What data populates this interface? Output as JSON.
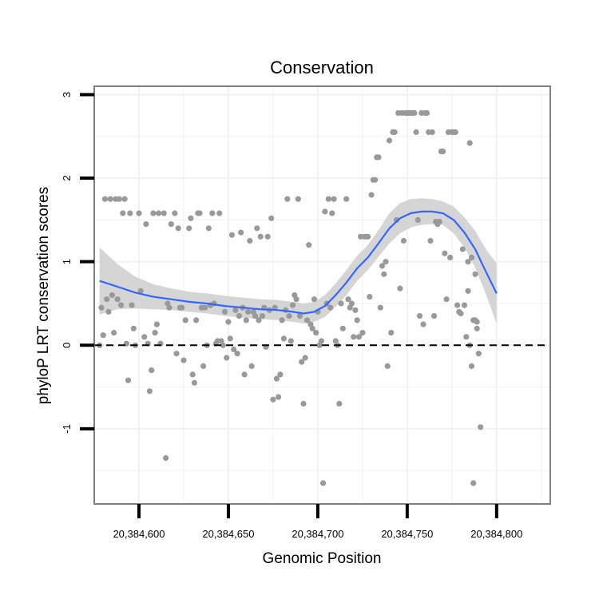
{
  "chart_data": {
    "type": "scatter",
    "title": "Conservation",
    "xlabel": "Genomic Position",
    "ylabel": "phyloP LRT conservation scores",
    "xlim": [
      20384575,
      20384830
    ],
    "ylim": [
      -1.9,
      3.1
    ],
    "x_ticks": [
      20384600,
      20384650,
      20384700,
      20384750,
      20384800
    ],
    "x_tick_labels": [
      "20,384,600",
      "20,384,650",
      "20,384,700",
      "20,384,750",
      "20,384,800"
    ],
    "y_ticks": [
      -1,
      0,
      1,
      2,
      3
    ],
    "y_tick_labels": [
      "-1",
      "0",
      "1",
      "2",
      "3"
    ],
    "reference_line": {
      "y": 0,
      "style": "dashed"
    },
    "grid": true,
    "colors": {
      "points": "#999999",
      "smooth": "#3366ff",
      "ribbon": "#d3d3d3",
      "frame": "#7f7f7f",
      "grid": "#f2f2f2"
    },
    "points": [
      [
        20384578,
        0.0
      ],
      [
        20384579,
        0.45
      ],
      [
        20384580,
        0.12
      ],
      [
        20384581,
        1.75
      ],
      [
        20384582,
        0.55
      ],
      [
        20384583,
        0.4
      ],
      [
        20384584,
        1.75
      ],
      [
        20384585,
        0.6
      ],
      [
        20384586,
        0.15
      ],
      [
        20384587,
        1.75
      ],
      [
        20384588,
        0.55
      ],
      [
        20384589,
        1.75
      ],
      [
        20384590,
        0.48
      ],
      [
        20384591,
        1.58
      ],
      [
        20384592,
        1.75
      ],
      [
        20384593,
        0.02
      ],
      [
        20384594,
        -0.42
      ],
      [
        20384595,
        1.58
      ],
      [
        20384596,
        0.48
      ],
      [
        20384597,
        0.2
      ],
      [
        20384598,
        0.0
      ],
      [
        20384600,
        1.58
      ],
      [
        20384601,
        0.65
      ],
      [
        20384603,
        0.1
      ],
      [
        20384604,
        1.45
      ],
      [
        20384605,
        0.02
      ],
      [
        20384606,
        -0.55
      ],
      [
        20384607,
        -0.3
      ],
      [
        20384608,
        1.58
      ],
      [
        20384609,
        0.15
      ],
      [
        20384610,
        0.25
      ],
      [
        20384611,
        1.58
      ],
      [
        20384612,
        0.02
      ],
      [
        20384614,
        1.58
      ],
      [
        20384615,
        -1.35
      ],
      [
        20384616,
        0.5
      ],
      [
        20384617,
        0.45
      ],
      [
        20384618,
        1.45
      ],
      [
        20384620,
        1.58
      ],
      [
        20384621,
        -0.1
      ],
      [
        20384622,
        1.4
      ],
      [
        20384623,
        0.45
      ],
      [
        20384624,
        0.45
      ],
      [
        20384625,
        -0.18
      ],
      [
        20384626,
        0.3
      ],
      [
        20384628,
        1.4
      ],
      [
        20384629,
        1.52
      ],
      [
        20384630,
        -0.35
      ],
      [
        20384631,
        -0.45
      ],
      [
        20384632,
        0.3
      ],
      [
        20384633,
        1.58
      ],
      [
        20384634,
        1.58
      ],
      [
        20384635,
        0.45
      ],
      [
        20384636,
        -0.25
      ],
      [
        20384637,
        0.45
      ],
      [
        20384638,
        0.0
      ],
      [
        20384639,
        1.4
      ],
      [
        20384640,
        0.48
      ],
      [
        20384641,
        1.58
      ],
      [
        20384642,
        0.5
      ],
      [
        20384643,
        0.02
      ],
      [
        20384644,
        0.05
      ],
      [
        20384645,
        1.58
      ],
      [
        20384646,
        0.05
      ],
      [
        20384647,
        0.0
      ],
      [
        20384648,
        0.4
      ],
      [
        20384649,
        -0.15
      ],
      [
        20384650,
        0.28
      ],
      [
        20384651,
        0.08
      ],
      [
        20384652,
        1.32
      ],
      [
        20384653,
        -0.05
      ],
      [
        20384654,
        0.42
      ],
      [
        20384655,
        -0.1
      ],
      [
        20384656,
        0.35
      ],
      [
        20384657,
        1.35
      ],
      [
        20384658,
        0.45
      ],
      [
        20384659,
        -0.35
      ],
      [
        20384660,
        0.3
      ],
      [
        20384661,
        0.4
      ],
      [
        20384662,
        1.25
      ],
      [
        20384663,
        -0.25
      ],
      [
        20384664,
        0.4
      ],
      [
        20384665,
        0.35
      ],
      [
        20384666,
        1.4
      ],
      [
        20384667,
        0.3
      ],
      [
        20384668,
        1.3
      ],
      [
        20384669,
        0.35
      ],
      [
        20384670,
        0.45
      ],
      [
        20384671,
        -0.02
      ],
      [
        20384672,
        1.3
      ],
      [
        20384673,
        0.42
      ],
      [
        20384674,
        1.52
      ],
      [
        20384675,
        -0.65
      ],
      [
        20384676,
        0.45
      ],
      [
        20384677,
        -0.4
      ],
      [
        20384678,
        -0.62
      ],
      [
        20384679,
        -0.35
      ],
      [
        20384680,
        0.3
      ],
      [
        20384681,
        0.08
      ],
      [
        20384682,
        0.42
      ],
      [
        20384683,
        1.75
      ],
      [
        20384684,
        0.35
      ],
      [
        20384685,
        0.05
      ],
      [
        20384686,
        0.48
      ],
      [
        20384687,
        0.6
      ],
      [
        20384688,
        0.55
      ],
      [
        20384689,
        1.75
      ],
      [
        20384690,
        0.35
      ],
      [
        20384691,
        -0.2
      ],
      [
        20384692,
        -0.7
      ],
      [
        20384693,
        -0.15
      ],
      [
        20384694,
        0.3
      ],
      [
        20384695,
        1.2
      ],
      [
        20384696,
        0.25
      ],
      [
        20384697,
        0.2
      ],
      [
        20384698,
        0.55
      ],
      [
        20384699,
        0.15
      ],
      [
        20384700,
        0.4
      ],
      [
        20384701,
        0.0
      ],
      [
        20384702,
        0.05
      ],
      [
        20384703,
        -1.65
      ],
      [
        20384704,
        1.6
      ],
      [
        20384705,
        0.5
      ],
      [
        20384706,
        1.75
      ],
      [
        20384707,
        0.45
      ],
      [
        20384708,
        1.58
      ],
      [
        20384709,
        1.75
      ],
      [
        20384710,
        0.05
      ],
      [
        20384711,
        0.0
      ],
      [
        20384712,
        -0.7
      ],
      [
        20384713,
        0.5
      ],
      [
        20384714,
        0.2
      ],
      [
        20384716,
        1.75
      ],
      [
        20384717,
        0.55
      ],
      [
        20384718,
        0.45
      ],
      [
        20384719,
        0.5
      ],
      [
        20384720,
        0.1
      ],
      [
        20384721,
        0.42
      ],
      [
        20384722,
        0.3
      ],
      [
        20384723,
        0.1
      ],
      [
        20384724,
        1.3
      ],
      [
        20384725,
        0.15
      ],
      [
        20384726,
        1.3
      ],
      [
        20384727,
        1.3
      ],
      [
        20384728,
        1.3
      ],
      [
        20384729,
        0.58
      ],
      [
        20384730,
        1.8
      ],
      [
        20384731,
        1.98
      ],
      [
        20384732,
        1.98
      ],
      [
        20384733,
        2.25
      ],
      [
        20384734,
        2.25
      ],
      [
        20384735,
        0.45
      ],
      [
        20384736,
        0.95
      ],
      [
        20384737,
        0.85
      ],
      [
        20384738,
        1.0
      ],
      [
        20384739,
        -0.25
      ],
      [
        20384740,
        2.45
      ],
      [
        20384741,
        0.15
      ],
      [
        20384742,
        2.55
      ],
      [
        20384743,
        2.55
      ],
      [
        20384744,
        1.5
      ],
      [
        20384745,
        2.78
      ],
      [
        20384746,
        0.68
      ],
      [
        20384747,
        2.78
      ],
      [
        20384748,
        1.25
      ],
      [
        20384749,
        2.78
      ],
      [
        20384750,
        2.78
      ],
      [
        20384751,
        2.78
      ],
      [
        20384752,
        2.78
      ],
      [
        20384753,
        2.78
      ],
      [
        20384754,
        2.78
      ],
      [
        20384755,
        2.55
      ],
      [
        20384756,
        1.5
      ],
      [
        20384757,
        0.35
      ],
      [
        20384758,
        2.78
      ],
      [
        20384759,
        0.25
      ],
      [
        20384760,
        2.78
      ],
      [
        20384761,
        2.78
      ],
      [
        20384762,
        2.55
      ],
      [
        20384763,
        1.25
      ],
      [
        20384764,
        2.55
      ],
      [
        20384765,
        0.35
      ],
      [
        20384766,
        1.48
      ],
      [
        20384767,
        1.45
      ],
      [
        20384768,
        1.48
      ],
      [
        20384769,
        2.32
      ],
      [
        20384770,
        2.32
      ],
      [
        20384771,
        1.1
      ],
      [
        20384772,
        0.55
      ],
      [
        20384773,
        2.55
      ],
      [
        20384774,
        1.05
      ],
      [
        20384775,
        2.55
      ],
      [
        20384776,
        2.55
      ],
      [
        20384777,
        2.55
      ],
      [
        20384778,
        0.48
      ],
      [
        20384779,
        0.4
      ],
      [
        20384780,
        0.38
      ],
      [
        20384781,
        1.15
      ],
      [
        20384782,
        0.48
      ],
      [
        20384783,
        0.1
      ],
      [
        20384784,
        1.0
      ],
      [
        20384785,
        2.42
      ],
      [
        20384786,
        -0.25
      ],
      [
        20384787,
        0.3
      ],
      [
        20384788,
        0.3
      ],
      [
        20384789,
        0.2
      ],
      [
        20384790,
        -0.1
      ],
      [
        20384791,
        -0.98
      ],
      [
        20384787,
        -1.65
      ],
      [
        20384788,
        0.85
      ],
      [
        20384789,
        0.28
      ],
      [
        20384786,
        1.05
      ],
      [
        20384785,
        0.0
      ],
      [
        20384784,
        0.65
      ]
    ],
    "smooth_line": [
      [
        20384578,
        0.77
      ],
      [
        20384588,
        0.7
      ],
      [
        20384598,
        0.63
      ],
      [
        20384608,
        0.58
      ],
      [
        20384618,
        0.55
      ],
      [
        20384628,
        0.52
      ],
      [
        20384638,
        0.5
      ],
      [
        20384648,
        0.47
      ],
      [
        20384658,
        0.45
      ],
      [
        20384668,
        0.43
      ],
      [
        20384678,
        0.42
      ],
      [
        20384686,
        0.4
      ],
      [
        20384692,
        0.38
      ],
      [
        20384698,
        0.4
      ],
      [
        20384704,
        0.47
      ],
      [
        20384710,
        0.6
      ],
      [
        20384716,
        0.75
      ],
      [
        20384722,
        0.92
      ],
      [
        20384728,
        1.05
      ],
      [
        20384734,
        1.22
      ],
      [
        20384740,
        1.4
      ],
      [
        20384746,
        1.52
      ],
      [
        20384752,
        1.58
      ],
      [
        20384758,
        1.6
      ],
      [
        20384764,
        1.6
      ],
      [
        20384770,
        1.58
      ],
      [
        20384776,
        1.5
      ],
      [
        20384782,
        1.35
      ],
      [
        20384788,
        1.15
      ],
      [
        20384794,
        0.88
      ],
      [
        20384800,
        0.62
      ]
    ],
    "ribbon_upper": [
      [
        20384578,
        1.17
      ],
      [
        20384588,
        0.97
      ],
      [
        20384598,
        0.82
      ],
      [
        20384608,
        0.73
      ],
      [
        20384618,
        0.68
      ],
      [
        20384628,
        0.64
      ],
      [
        20384638,
        0.62
      ],
      [
        20384648,
        0.59
      ],
      [
        20384658,
        0.57
      ],
      [
        20384668,
        0.55
      ],
      [
        20384678,
        0.54
      ],
      [
        20384686,
        0.52
      ],
      [
        20384692,
        0.5
      ],
      [
        20384698,
        0.52
      ],
      [
        20384704,
        0.6
      ],
      [
        20384710,
        0.74
      ],
      [
        20384716,
        0.9
      ],
      [
        20384722,
        1.07
      ],
      [
        20384728,
        1.2
      ],
      [
        20384734,
        1.38
      ],
      [
        20384740,
        1.58
      ],
      [
        20384746,
        1.7
      ],
      [
        20384752,
        1.75
      ],
      [
        20384758,
        1.76
      ],
      [
        20384764,
        1.75
      ],
      [
        20384770,
        1.72
      ],
      [
        20384776,
        1.66
      ],
      [
        20384782,
        1.53
      ],
      [
        20384788,
        1.37
      ],
      [
        20384794,
        1.15
      ],
      [
        20384800,
        0.98
      ]
    ],
    "ribbon_lower": [
      [
        20384578,
        0.37
      ],
      [
        20384588,
        0.43
      ],
      [
        20384598,
        0.44
      ],
      [
        20384608,
        0.43
      ],
      [
        20384618,
        0.42
      ],
      [
        20384628,
        0.4
      ],
      [
        20384638,
        0.38
      ],
      [
        20384648,
        0.35
      ],
      [
        20384658,
        0.33
      ],
      [
        20384668,
        0.31
      ],
      [
        20384678,
        0.3
      ],
      [
        20384686,
        0.28
      ],
      [
        20384692,
        0.26
      ],
      [
        20384698,
        0.28
      ],
      [
        20384704,
        0.34
      ],
      [
        20384710,
        0.46
      ],
      [
        20384716,
        0.6
      ],
      [
        20384722,
        0.77
      ],
      [
        20384728,
        0.9
      ],
      [
        20384734,
        1.06
      ],
      [
        20384740,
        1.22
      ],
      [
        20384746,
        1.34
      ],
      [
        20384752,
        1.41
      ],
      [
        20384758,
        1.44
      ],
      [
        20384764,
        1.45
      ],
      [
        20384770,
        1.44
      ],
      [
        20384776,
        1.34
      ],
      [
        20384782,
        1.17
      ],
      [
        20384788,
        0.93
      ],
      [
        20384794,
        0.61
      ],
      [
        20384800,
        0.26
      ]
    ]
  }
}
